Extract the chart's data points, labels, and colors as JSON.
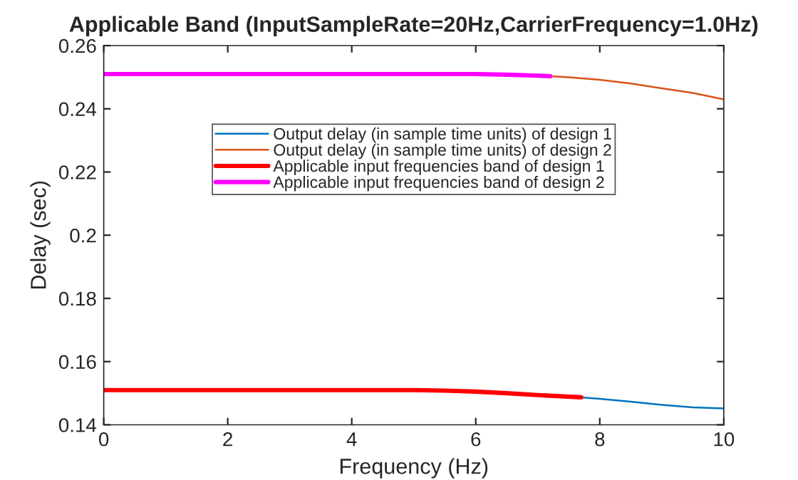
{
  "chart_data": {
    "type": "line",
    "title": "Applicable Band (InputSampleRate=20Hz,CarrierFrequency=1.0Hz)",
    "xlabel": "Frequency (Hz)",
    "ylabel": "Delay (sec)",
    "xlim": [
      0,
      10
    ],
    "xticks": [
      0,
      2,
      4,
      6,
      8,
      10
    ],
    "ylim": [
      0.14,
      0.26
    ],
    "yticks": [
      0.14,
      0.16,
      0.18,
      0.2,
      0.22,
      0.24,
      0.26
    ],
    "grid": false,
    "legend": "center",
    "marker": "none",
    "series": [
      {
        "name": "Output delay (in sample time units) of design 1",
        "color": "#0072bd",
        "x": [
          7.7,
          8,
          8.5,
          9,
          9.5,
          10
        ],
        "values": [
          0.1487,
          0.1482,
          0.1473,
          0.1463,
          0.1455,
          0.1452
        ]
      },
      {
        "name": "Output delay (in sample time units) of design 2",
        "color": "#d95319",
        "x": [
          7.2,
          7.5,
          8,
          8.5,
          9,
          9.5,
          10
        ],
        "values": [
          0.2503,
          0.25,
          0.2492,
          0.248,
          0.2465,
          0.245,
          0.243
        ]
      },
      {
        "name": "Applicable input frequencies band of design 1",
        "color": "#ff0000",
        "x": [
          0,
          1,
          2,
          3,
          4,
          5,
          5.5,
          6,
          6.5,
          7,
          7.7
        ],
        "values": [
          0.151,
          0.151,
          0.151,
          0.151,
          0.151,
          0.151,
          0.1508,
          0.1505,
          0.15,
          0.1494,
          0.1487
        ]
      },
      {
        "name": "Applicable input frequencies band of design 2",
        "color": "#ff00ff",
        "x": [
          0,
          1,
          2,
          3,
          4,
          5,
          6,
          6.5,
          7,
          7.2
        ],
        "values": [
          0.251,
          0.251,
          0.251,
          0.251,
          0.251,
          0.251,
          0.251,
          0.2508,
          0.2505,
          0.2503
        ]
      }
    ]
  }
}
